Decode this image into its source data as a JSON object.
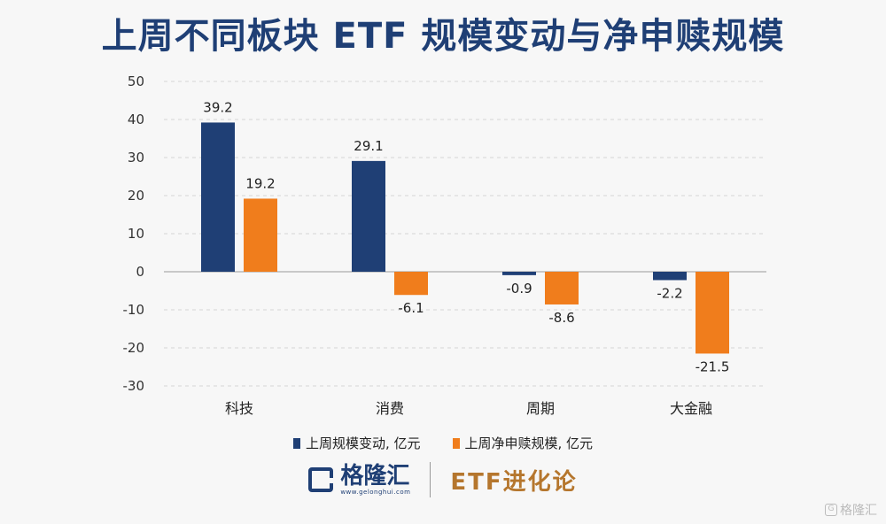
{
  "chart_data": {
    "type": "bar",
    "title": "上周不同板块 ETF 规模变动与净申赎规模",
    "categories": [
      "科技",
      "消费",
      "周期",
      "大金融"
    ],
    "series": [
      {
        "name": "上周规模变动, 亿元",
        "color": "#1f3f75",
        "values": [
          39.2,
          29.1,
          -0.9,
          -2.2
        ],
        "labels": [
          "39.2",
          "29.1",
          "-0.9",
          "-2.2"
        ]
      },
      {
        "name": "上周净申赎规模, 亿元",
        "color": "#f07d1c",
        "values": [
          19.2,
          -6.1,
          -8.6,
          -21.5
        ],
        "labels": [
          "19.2",
          "-6.1",
          "-8.6",
          "-21.5"
        ]
      }
    ],
    "ylim": [
      -30,
      50
    ],
    "yticks": [
      50,
      40,
      30,
      20,
      10,
      0,
      -10,
      -20,
      -30
    ],
    "ytick_labels": [
      "50",
      "40",
      "30",
      "20",
      "10",
      "0",
      "-10",
      "-20",
      "-30"
    ],
    "grid": true,
    "legend_position": "bottom"
  },
  "footer": {
    "brand_name": "格隆汇",
    "brand_url": "www.gelonghui.com",
    "column_name": "ETF进化论"
  },
  "watermark": {
    "icon": "G",
    "text": "格隆汇"
  }
}
